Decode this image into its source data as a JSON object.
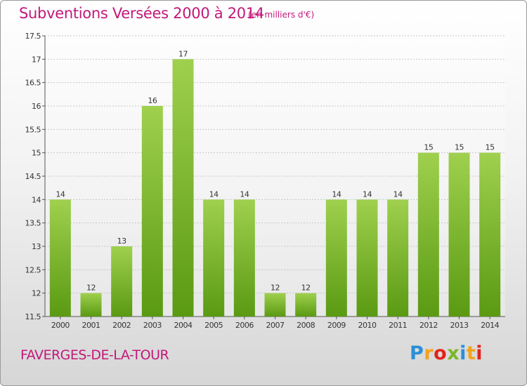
{
  "header": {
    "title": "Subventions Versées 2000 à 2014",
    "subtitle": "(en milliers d'€)"
  },
  "footer": {
    "place": "FAVERGES-DE-LA-TOUR",
    "logo_letters": [
      "P",
      "r",
      "o",
      "x",
      "i",
      "t",
      "i"
    ],
    "logo_colors": [
      "#2a8fd6",
      "#f2a31c",
      "#e2231a",
      "#79b828",
      "#2a8fd6",
      "#f2a31c",
      "#e2231a"
    ]
  },
  "colors": {
    "bar_light": "#9fd04e",
    "bar_dark": "#5a9a12",
    "grid": "#c8c8c8",
    "axis": "#555555",
    "label": "#333333"
  },
  "chart_data": {
    "type": "bar",
    "title": "Subventions Versées 2000 à 2014",
    "subtitle": "(en milliers d'€)",
    "categories": [
      "2000",
      "2001",
      "2002",
      "2003",
      "2004",
      "2005",
      "2006",
      "2007",
      "2008",
      "2009",
      "2010",
      "2011",
      "2012",
      "2013",
      "2014"
    ],
    "values": [
      14,
      12,
      13,
      16,
      17,
      14,
      14,
      12,
      12,
      14,
      14,
      14,
      15,
      15,
      15
    ],
    "ylim": [
      11.5,
      17.5
    ],
    "yticks": [
      "11.5",
      "12",
      "12.5",
      "13",
      "13.5",
      "14",
      "14.5",
      "15",
      "15.5",
      "16",
      "16.5",
      "17",
      "17.5"
    ],
    "grid": true,
    "legend": "none"
  }
}
